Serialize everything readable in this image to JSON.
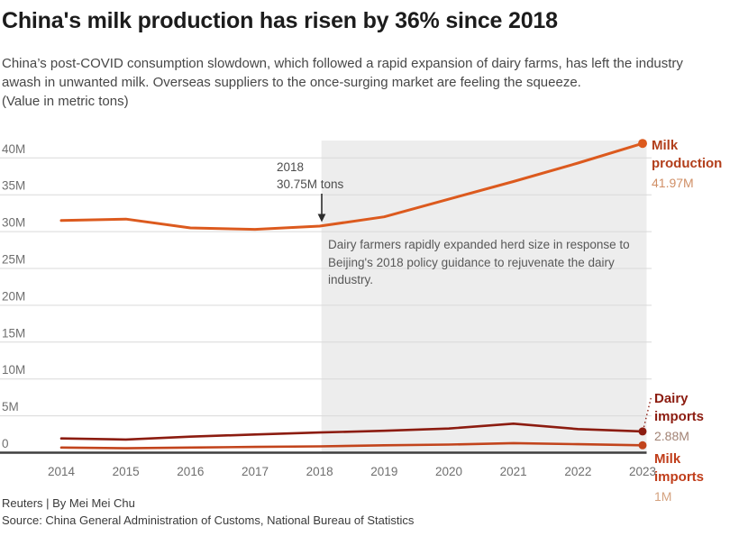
{
  "header": {
    "title": "China's milk production has risen by 36% since 2018",
    "subtitle": "China’s post-COVID consumption slowdown, which followed a rapid expansion of dairy farms, has left the industry awash in unwanted milk. Overseas suppliers to the once-surging market are feeling the squeeze.",
    "units_note": "(Value in metric tons)"
  },
  "chart_data": {
    "type": "line",
    "title": "China's milk production has risen by 36% since 2018",
    "xlabel": "",
    "ylabel": "Value in metric tons",
    "grid": true,
    "legend_position": "right-end-labels",
    "x": [
      2014,
      2015,
      2016,
      2017,
      2018,
      2019,
      2020,
      2021,
      2022,
      2023
    ],
    "ylim": [
      0,
      42.5
    ],
    "yticks": [
      {
        "value": 40,
        "label": "40M"
      },
      {
        "value": 35,
        "label": "35M"
      },
      {
        "value": 30,
        "label": "30M"
      },
      {
        "value": 25,
        "label": "25M"
      },
      {
        "value": 20,
        "label": "20M"
      },
      {
        "value": 15,
        "label": "15M"
      },
      {
        "value": 10,
        "label": "10M"
      },
      {
        "value": 5,
        "label": "5M"
      },
      {
        "value": 0,
        "label": "0"
      }
    ],
    "highlight_region": {
      "from_x": 2018,
      "to_x": 2023,
      "color": "#ededed"
    },
    "series": [
      {
        "name": "Milk production",
        "color": "#dc5a1e",
        "label_color": "#b23f1c",
        "value_label": "41.97M",
        "value_label_color": "#d08f66",
        "values": [
          31.5,
          31.7,
          30.5,
          30.3,
          30.75,
          32.0,
          34.4,
          36.8,
          39.3,
          41.97
        ]
      },
      {
        "name": "Dairy imports",
        "color": "#8c1c10",
        "label_color": "#8c1c10",
        "value_label": "2.88M",
        "value_label_color": "#a28375",
        "values": [
          1.93,
          1.79,
          2.18,
          2.47,
          2.74,
          2.97,
          3.28,
          3.94,
          3.2,
          2.88
        ]
      },
      {
        "name": "Milk imports",
        "color": "#c2441c",
        "label_color": "#c03d1a",
        "value_label": "1M",
        "value_label_color": "#d4a27f",
        "values": [
          0.7,
          0.6,
          0.7,
          0.78,
          0.85,
          1.0,
          1.1,
          1.3,
          1.15,
          1.0
        ]
      }
    ],
    "annotations": [
      {
        "id": "event-2018",
        "line1": "2018",
        "line2": "30.75M tons",
        "arrow_down_at_x": 2018
      },
      {
        "id": "policy-note",
        "text": "Dairy farmers rapidly expanded herd size in response to Beijing's 2018 policy guidance to rejuvenate the dairy industry."
      }
    ]
  },
  "footer": {
    "credit": "Reuters | By Mei Mei Chu",
    "source": "Source: China General Administration of Customs, National Bureau of Statistics"
  }
}
